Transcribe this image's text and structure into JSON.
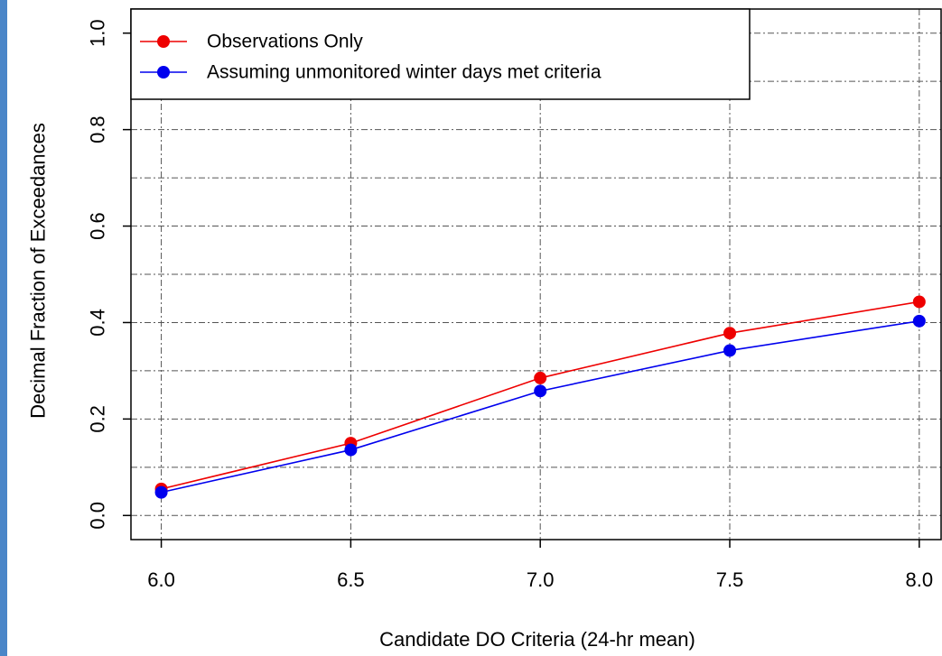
{
  "chart_data": {
    "type": "line",
    "title": "",
    "xlabel": "Candidate DO Criteria (24-hr mean)",
    "ylabel": "Decimal Fraction of Exceedances",
    "x": [
      6.0,
      6.5,
      7.0,
      7.5,
      8.0
    ],
    "x_tick_labels": [
      "6.0",
      "6.5",
      "7.0",
      "7.5",
      "8.0"
    ],
    "y_ticks": [
      0.0,
      0.2,
      0.4,
      0.6,
      0.8,
      1.0
    ],
    "y_tick_labels": [
      "0.0",
      "0.2",
      "0.4",
      "0.6",
      "0.8",
      "1.0"
    ],
    "xlim": [
      5.92,
      8.06
    ],
    "ylim": [
      -0.05,
      1.05
    ],
    "grid": true,
    "grid_x_minor": [
      6.0,
      6.5,
      7.0,
      7.5,
      8.0
    ],
    "grid_y_minor": [
      0.1,
      0.3,
      0.5,
      0.7,
      0.9
    ],
    "legend_position": "top-left",
    "series": [
      {
        "name": "Observations Only",
        "color": "#ee0000",
        "values": [
          0.055,
          0.15,
          0.285,
          0.378,
          0.443
        ]
      },
      {
        "name": "Assuming unmonitored winter days met criteria",
        "color": "#0000ee",
        "values": [
          0.048,
          0.136,
          0.258,
          0.342,
          0.403
        ]
      }
    ]
  }
}
